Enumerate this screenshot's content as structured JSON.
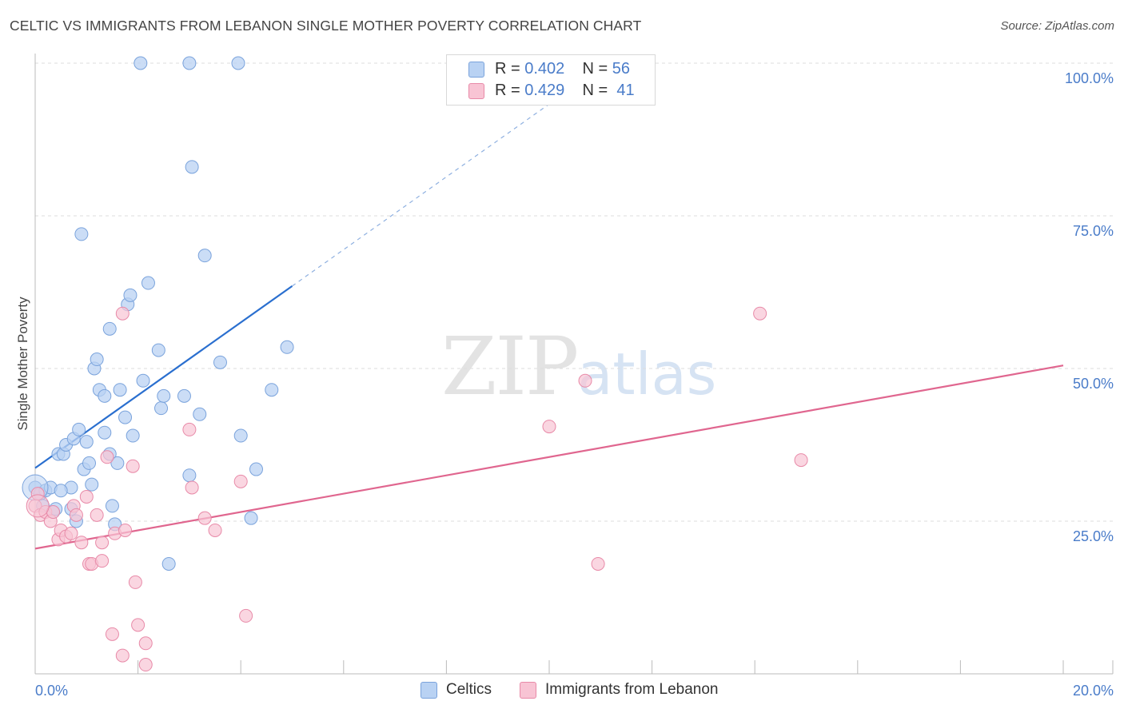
{
  "header": {
    "title": "CELTIC VS IMMIGRANTS FROM LEBANON SINGLE MOTHER POVERTY CORRELATION CHART",
    "source": "Source: ZipAtlas.com"
  },
  "watermark": {
    "zip": "ZIP",
    "atlas": "atlas"
  },
  "legend": {
    "rows": [
      {
        "r_label": "R =",
        "r_value": "0.402",
        "n_label": "N =",
        "n_value": "56"
      },
      {
        "r_label": "R =",
        "r_value": "0.429",
        "n_label": "N =",
        "n_value": "41"
      }
    ]
  },
  "bottom_legend": {
    "series1": "Celtics",
    "series2": "Immigrants from Lebanon"
  },
  "colors": {
    "celtics_fill": "#b9d2f3",
    "celtics_stroke": "#7aa3dc",
    "celtics_line": "#2a6fcf",
    "lebanon_fill": "#f8c4d4",
    "lebanon_stroke": "#e88aa8",
    "lebanon_line": "#e0668f",
    "axis_text": "#4a7cc9",
    "grid": "#dddddd"
  },
  "chart_data": {
    "type": "scatter",
    "title": "CELTIC VS IMMIGRANTS FROM LEBANON SINGLE MOTHER POVERTY CORRELATION CHART",
    "xlabel": "",
    "ylabel": "Single Mother Poverty",
    "xlim": [
      0,
      20
    ],
    "ylim": [
      0,
      100
    ],
    "x_ticks": [
      "0.0%",
      "20.0%"
    ],
    "y_ticks": [
      "25.0%",
      "50.0%",
      "75.0%",
      "100.0%"
    ],
    "y_tick_values": [
      25,
      50,
      75,
      100
    ],
    "grid": true,
    "legend_position": "top-center",
    "series": [
      {
        "name": "Celtics",
        "R": 0.402,
        "N": 56,
        "trend": {
          "x0": 0,
          "y0": 33.7,
          "x1": 5.0,
          "y1": 63.5,
          "dashed_to_x": 10.6
        },
        "points": [
          [
            0.0,
            30.5
          ],
          [
            0.1,
            29.5
          ],
          [
            0.15,
            27.5
          ],
          [
            0.2,
            30.0
          ],
          [
            0.3,
            30.5
          ],
          [
            0.35,
            26.5
          ],
          [
            0.4,
            27.0
          ],
          [
            0.45,
            36.0
          ],
          [
            0.55,
            36.0
          ],
          [
            0.6,
            37.5
          ],
          [
            0.7,
            27.0
          ],
          [
            0.7,
            30.5
          ],
          [
            0.75,
            38.5
          ],
          [
            0.8,
            25.0
          ],
          [
            0.85,
            40.0
          ],
          [
            0.9,
            72.0
          ],
          [
            0.95,
            33.5
          ],
          [
            1.0,
            38.0
          ],
          [
            1.05,
            34.5
          ],
          [
            1.1,
            31.0
          ],
          [
            1.15,
            50.0
          ],
          [
            1.2,
            51.5
          ],
          [
            1.25,
            46.5
          ],
          [
            1.35,
            39.5
          ],
          [
            1.35,
            45.5
          ],
          [
            1.45,
            36.0
          ],
          [
            1.45,
            56.5
          ],
          [
            1.55,
            24.5
          ],
          [
            1.6,
            34.5
          ],
          [
            1.65,
            46.5
          ],
          [
            1.75,
            42.0
          ],
          [
            1.8,
            60.5
          ],
          [
            1.85,
            62.0
          ],
          [
            1.9,
            39.0
          ],
          [
            2.05,
            100.0
          ],
          [
            2.1,
            48.0
          ],
          [
            2.2,
            64.0
          ],
          [
            2.4,
            53.0
          ],
          [
            2.45,
            43.5
          ],
          [
            2.5,
            45.5
          ],
          [
            2.6,
            18.0
          ],
          [
            2.9,
            45.5
          ],
          [
            3.0,
            100.0
          ],
          [
            3.0,
            32.5
          ],
          [
            3.05,
            83.0
          ],
          [
            3.2,
            42.5
          ],
          [
            3.3,
            68.5
          ],
          [
            3.6,
            51.0
          ],
          [
            3.95,
            100.0
          ],
          [
            4.0,
            39.0
          ],
          [
            4.2,
            25.5
          ],
          [
            4.3,
            33.5
          ],
          [
            4.6,
            46.5
          ],
          [
            4.9,
            53.5
          ],
          [
            1.5,
            27.5
          ],
          [
            0.5,
            30.0
          ]
        ]
      },
      {
        "name": "Immigrants from Lebanon",
        "R": 0.429,
        "N": 41,
        "trend": {
          "x0": 0,
          "y0": 20.5,
          "x1": 20.0,
          "y1": 50.5
        },
        "points": [
          [
            0.0,
            27.5
          ],
          [
            0.05,
            29.5
          ],
          [
            0.1,
            26.0
          ],
          [
            0.2,
            26.5
          ],
          [
            0.3,
            25.0
          ],
          [
            0.35,
            26.5
          ],
          [
            0.45,
            22.0
          ],
          [
            0.5,
            23.5
          ],
          [
            0.6,
            22.5
          ],
          [
            0.7,
            23.0
          ],
          [
            0.75,
            27.5
          ],
          [
            0.8,
            26.0
          ],
          [
            0.9,
            21.5
          ],
          [
            1.0,
            29.0
          ],
          [
            1.05,
            18.0
          ],
          [
            1.1,
            18.0
          ],
          [
            1.2,
            26.0
          ],
          [
            1.3,
            21.5
          ],
          [
            1.3,
            18.5
          ],
          [
            1.4,
            35.5
          ],
          [
            1.5,
            6.5
          ],
          [
            1.55,
            23.0
          ],
          [
            1.7,
            3.0
          ],
          [
            1.7,
            59.0
          ],
          [
            1.75,
            23.5
          ],
          [
            1.9,
            34.0
          ],
          [
            1.95,
            15.0
          ],
          [
            2.0,
            8.0
          ],
          [
            2.15,
            1.5
          ],
          [
            2.15,
            5.0
          ],
          [
            3.0,
            40.0
          ],
          [
            3.05,
            30.5
          ],
          [
            3.3,
            25.5
          ],
          [
            3.5,
            23.5
          ],
          [
            4.0,
            31.5
          ],
          [
            4.1,
            9.5
          ],
          [
            10.0,
            40.5
          ],
          [
            10.7,
            48.0
          ],
          [
            10.95,
            18.0
          ],
          [
            14.1,
            59.0
          ],
          [
            14.9,
            35.0
          ]
        ]
      }
    ]
  }
}
